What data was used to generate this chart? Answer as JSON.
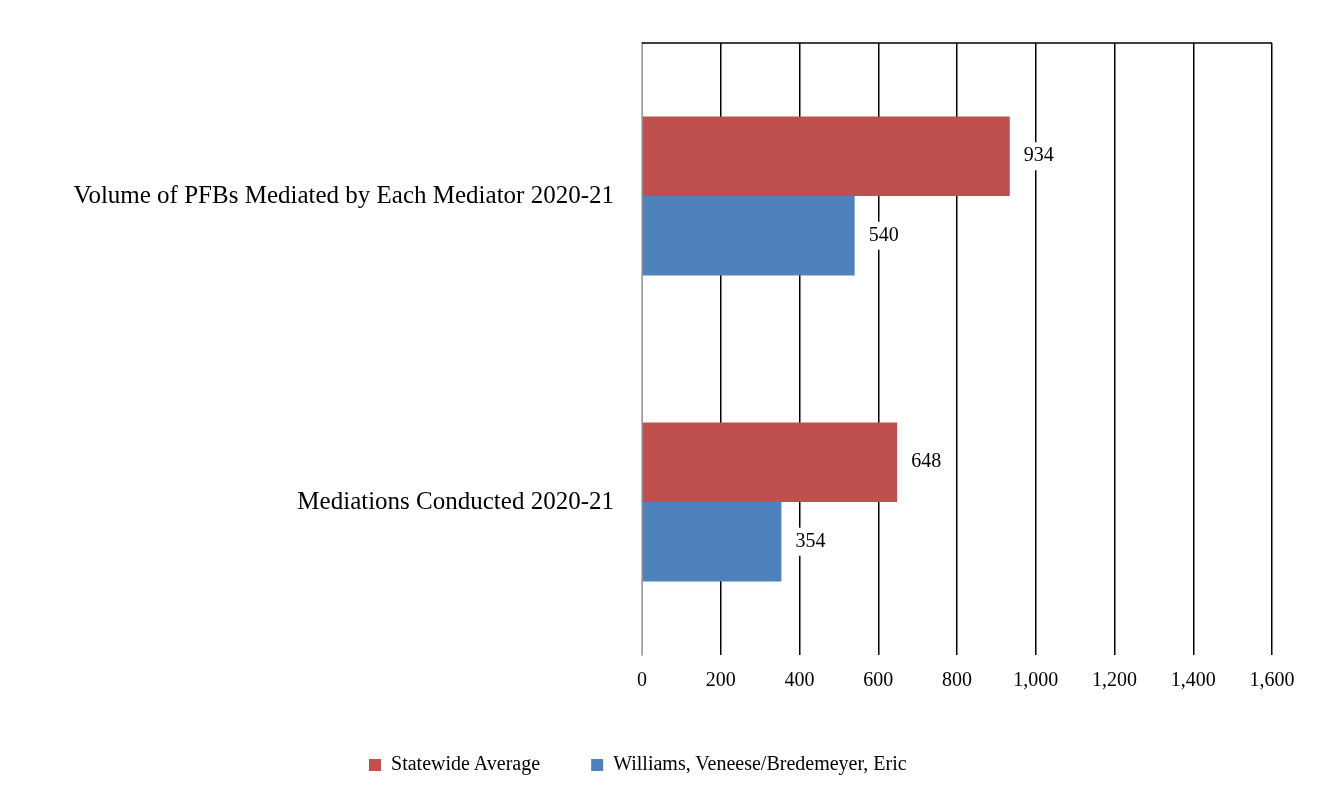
{
  "chart_data": {
    "type": "bar",
    "orientation": "horizontal",
    "categories": [
      "Volume of PFBs Mediated by Each Mediator 2020-21",
      "Mediations Conducted 2020-21"
    ],
    "series": [
      {
        "name": "Statewide Average",
        "color": "#c0504d",
        "values": [
          934,
          648
        ]
      },
      {
        "name": "Williams, Veneese/Bredemeyer, Eric",
        "color": "#4f81bd",
        "values": [
          540,
          354
        ]
      }
    ],
    "xlim": [
      0,
      1600
    ],
    "xticks": [
      0,
      {
        "value": 200,
        "label": "200"
      },
      {
        "value": 400,
        "label": "400"
      },
      {
        "value": 600,
        "label": "600"
      },
      {
        "value": 800,
        "label": "800"
      },
      {
        "value": 1000,
        "label": "1,000"
      },
      {
        "value": 1200,
        "label": "1,200"
      },
      {
        "value": 1400,
        "label": "1,400"
      },
      {
        "value": 1600,
        "label": "1,600"
      }
    ],
    "grid": "x",
    "legend": "bottom",
    "data_labels": true
  }
}
